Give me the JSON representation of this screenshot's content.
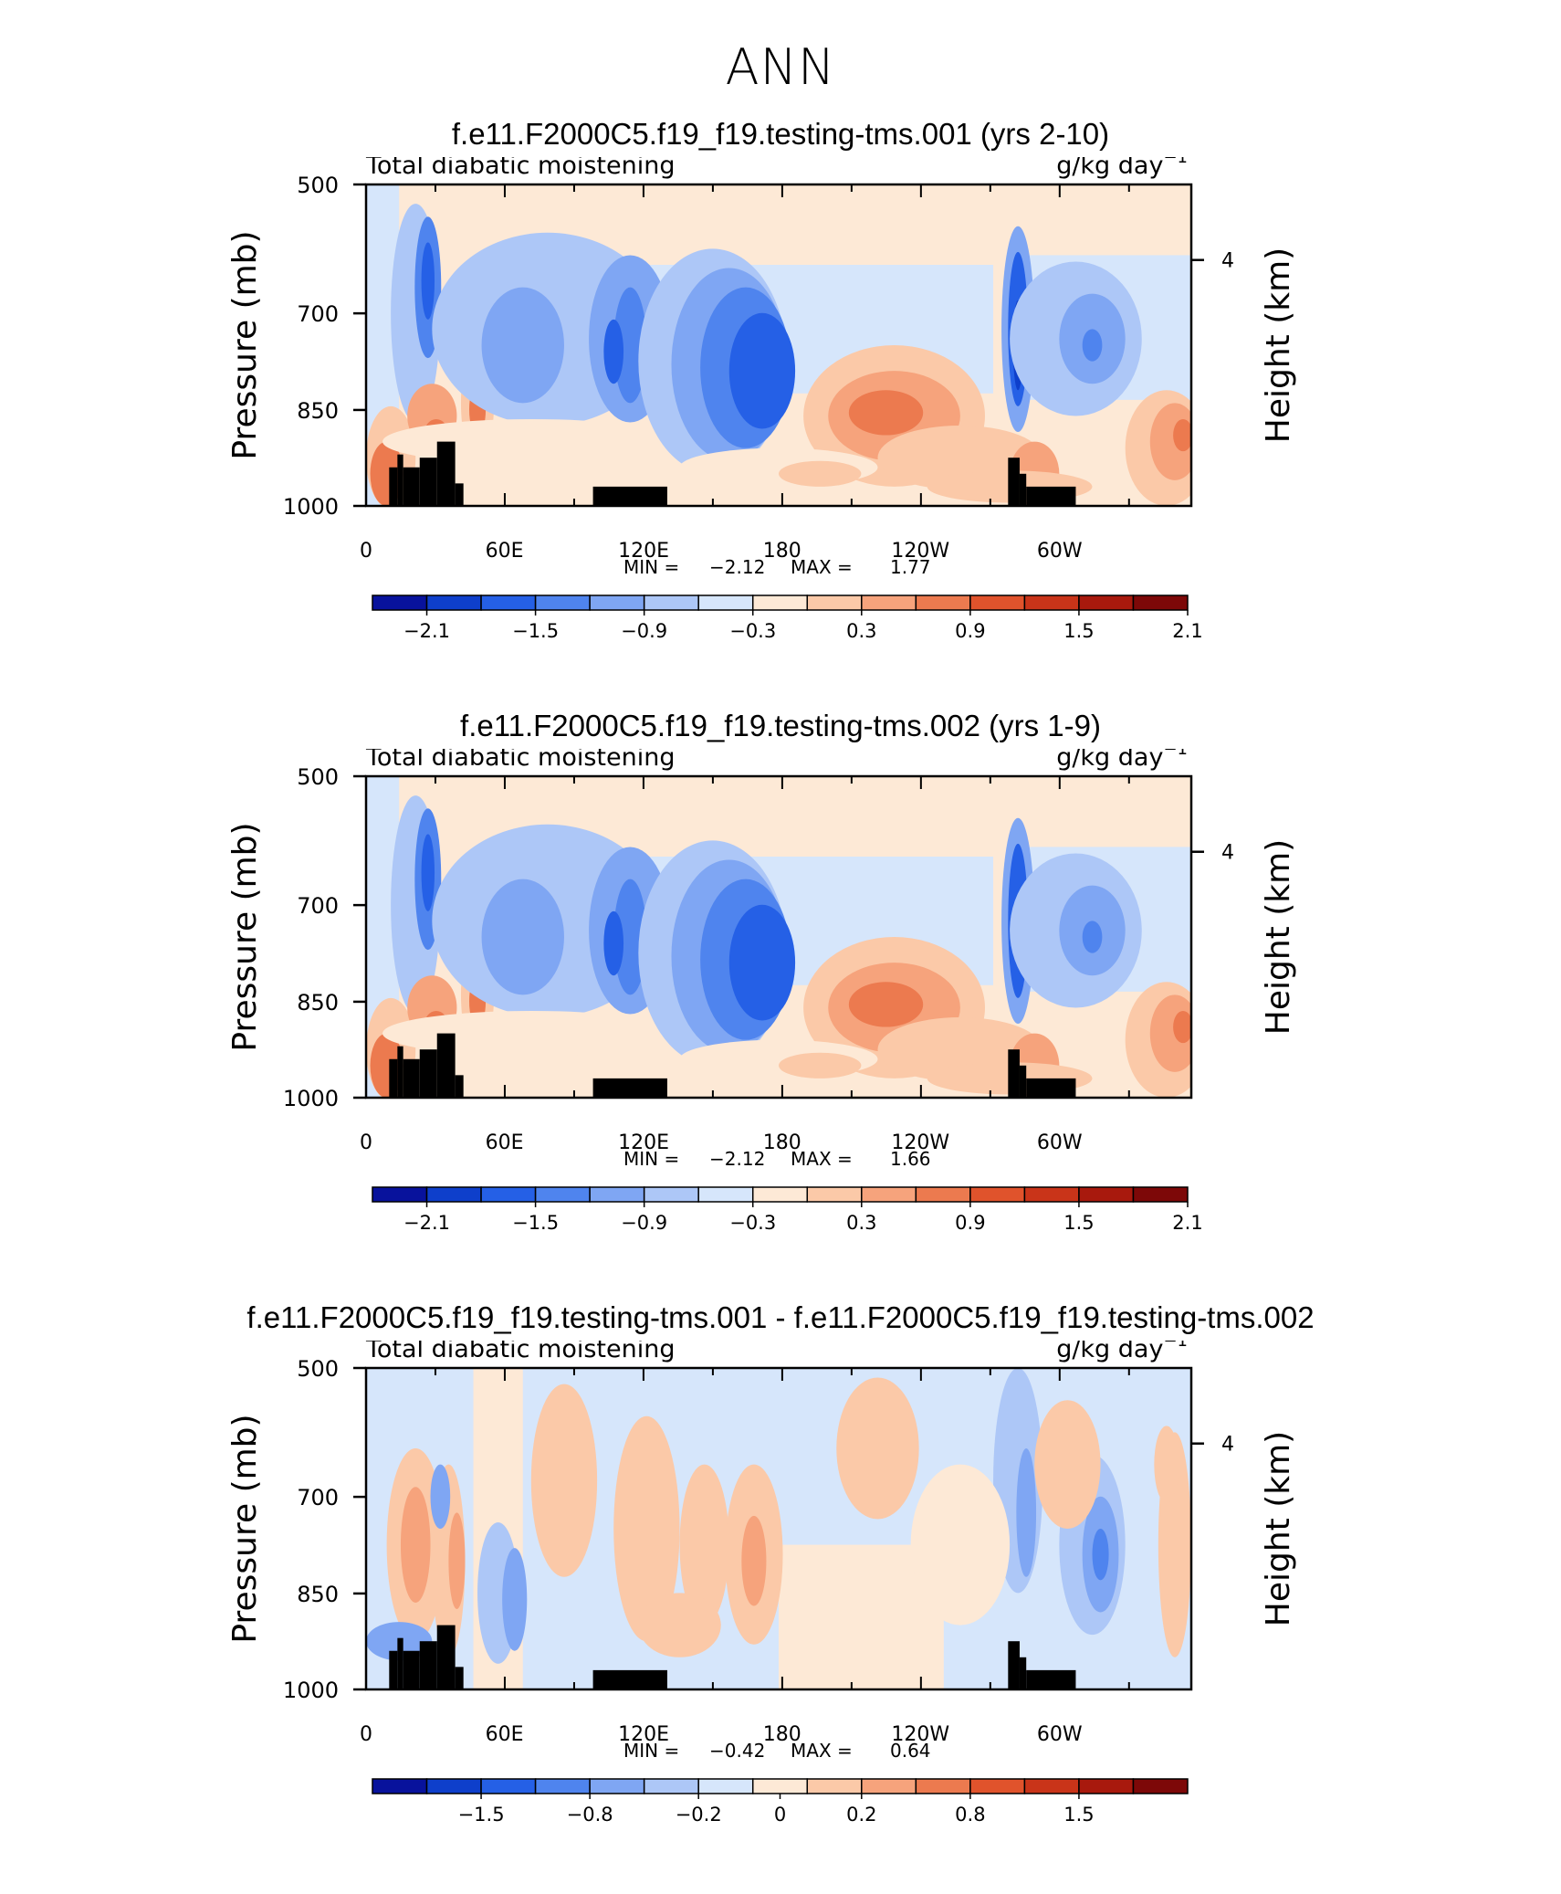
{
  "title": "ANN",
  "chart_data": [
    {
      "type": "heatmap",
      "title": "f.e11.F2000C5.f19_f19.testing-tms.001 (yrs 2-10)",
      "variable": "Total diabatic moistening",
      "units": "g/kg day",
      "units_exponent": "−1",
      "ylabel": "Pressure (mb)",
      "ylabel_right": "Height (km)",
      "yticks": [
        "500",
        "700",
        "850",
        "1000"
      ],
      "yticks_right": [
        "4"
      ],
      "xticks": [
        "0",
        "60E",
        "120E",
        "180",
        "120W",
        "60W"
      ],
      "min_label": "MIN =",
      "min_value": "−2.12",
      "max_label": "MAX =",
      "max_value": "1.77",
      "colorbar_labels": [
        "−2.1",
        "−1.5",
        "−0.9",
        "−0.3",
        "0.3",
        "0.9",
        "1.5",
        "2.1"
      ],
      "colorbar_colors": [
        "#08129c",
        "#0e3fcb",
        "#2560e6",
        "#4f84ee",
        "#7fa6f3",
        "#adc7f7",
        "#d6e6fb",
        "#fde9d6",
        "#fbc9a8",
        "#f6a37c",
        "#ec7a4f",
        "#e0532c",
        "#c93419",
        "#a8190d",
        "#7d0808"
      ]
    },
    {
      "type": "heatmap",
      "title": "f.e11.F2000C5.f19_f19.testing-tms.002 (yrs 1-9)",
      "variable": "Total diabatic moistening",
      "units": "g/kg day",
      "units_exponent": "−1",
      "ylabel": "Pressure (mb)",
      "ylabel_right": "Height (km)",
      "yticks": [
        "500",
        "700",
        "850",
        "1000"
      ],
      "yticks_right": [
        "4"
      ],
      "xticks": [
        "0",
        "60E",
        "120E",
        "180",
        "120W",
        "60W"
      ],
      "min_label": "MIN =",
      "min_value": "−2.12",
      "max_label": "MAX =",
      "max_value": "1.66",
      "colorbar_labels": [
        "−2.1",
        "−1.5",
        "−0.9",
        "−0.3",
        "0.3",
        "0.9",
        "1.5",
        "2.1"
      ],
      "colorbar_colors": [
        "#08129c",
        "#0e3fcb",
        "#2560e6",
        "#4f84ee",
        "#7fa6f3",
        "#adc7f7",
        "#d6e6fb",
        "#fde9d6",
        "#fbc9a8",
        "#f6a37c",
        "#ec7a4f",
        "#e0532c",
        "#c93419",
        "#a8190d",
        "#7d0808"
      ]
    },
    {
      "type": "heatmap",
      "title": "f.e11.F2000C5.f19_f19.testing-tms.001 - f.e11.F2000C5.f19_f19.testing-tms.002",
      "variable": "Total diabatic moistening",
      "units": "g/kg day",
      "units_exponent": "−1",
      "ylabel": "Pressure (mb)",
      "ylabel_right": "Height (km)",
      "yticks": [
        "500",
        "700",
        "850",
        "1000"
      ],
      "yticks_right": [
        "4"
      ],
      "xticks": [
        "0",
        "60E",
        "120E",
        "180",
        "120W",
        "60W"
      ],
      "min_label": "MIN =",
      "min_value": "−0.42",
      "max_label": "MAX =",
      "max_value": "0.64",
      "colorbar_labels": [
        "−1.5",
        "−0.8",
        "−0.2",
        "0",
        "0.2",
        "0.8",
        "1.5"
      ],
      "colorbar_colors": [
        "#08129c",
        "#0e3fcb",
        "#2560e6",
        "#4f84ee",
        "#7fa6f3",
        "#adc7f7",
        "#d6e6fb",
        "#fde9d6",
        "#fbc9a8",
        "#f6a37c",
        "#ec7a4f",
        "#e0532c",
        "#c93419",
        "#a8190d",
        "#7d0808"
      ]
    }
  ]
}
